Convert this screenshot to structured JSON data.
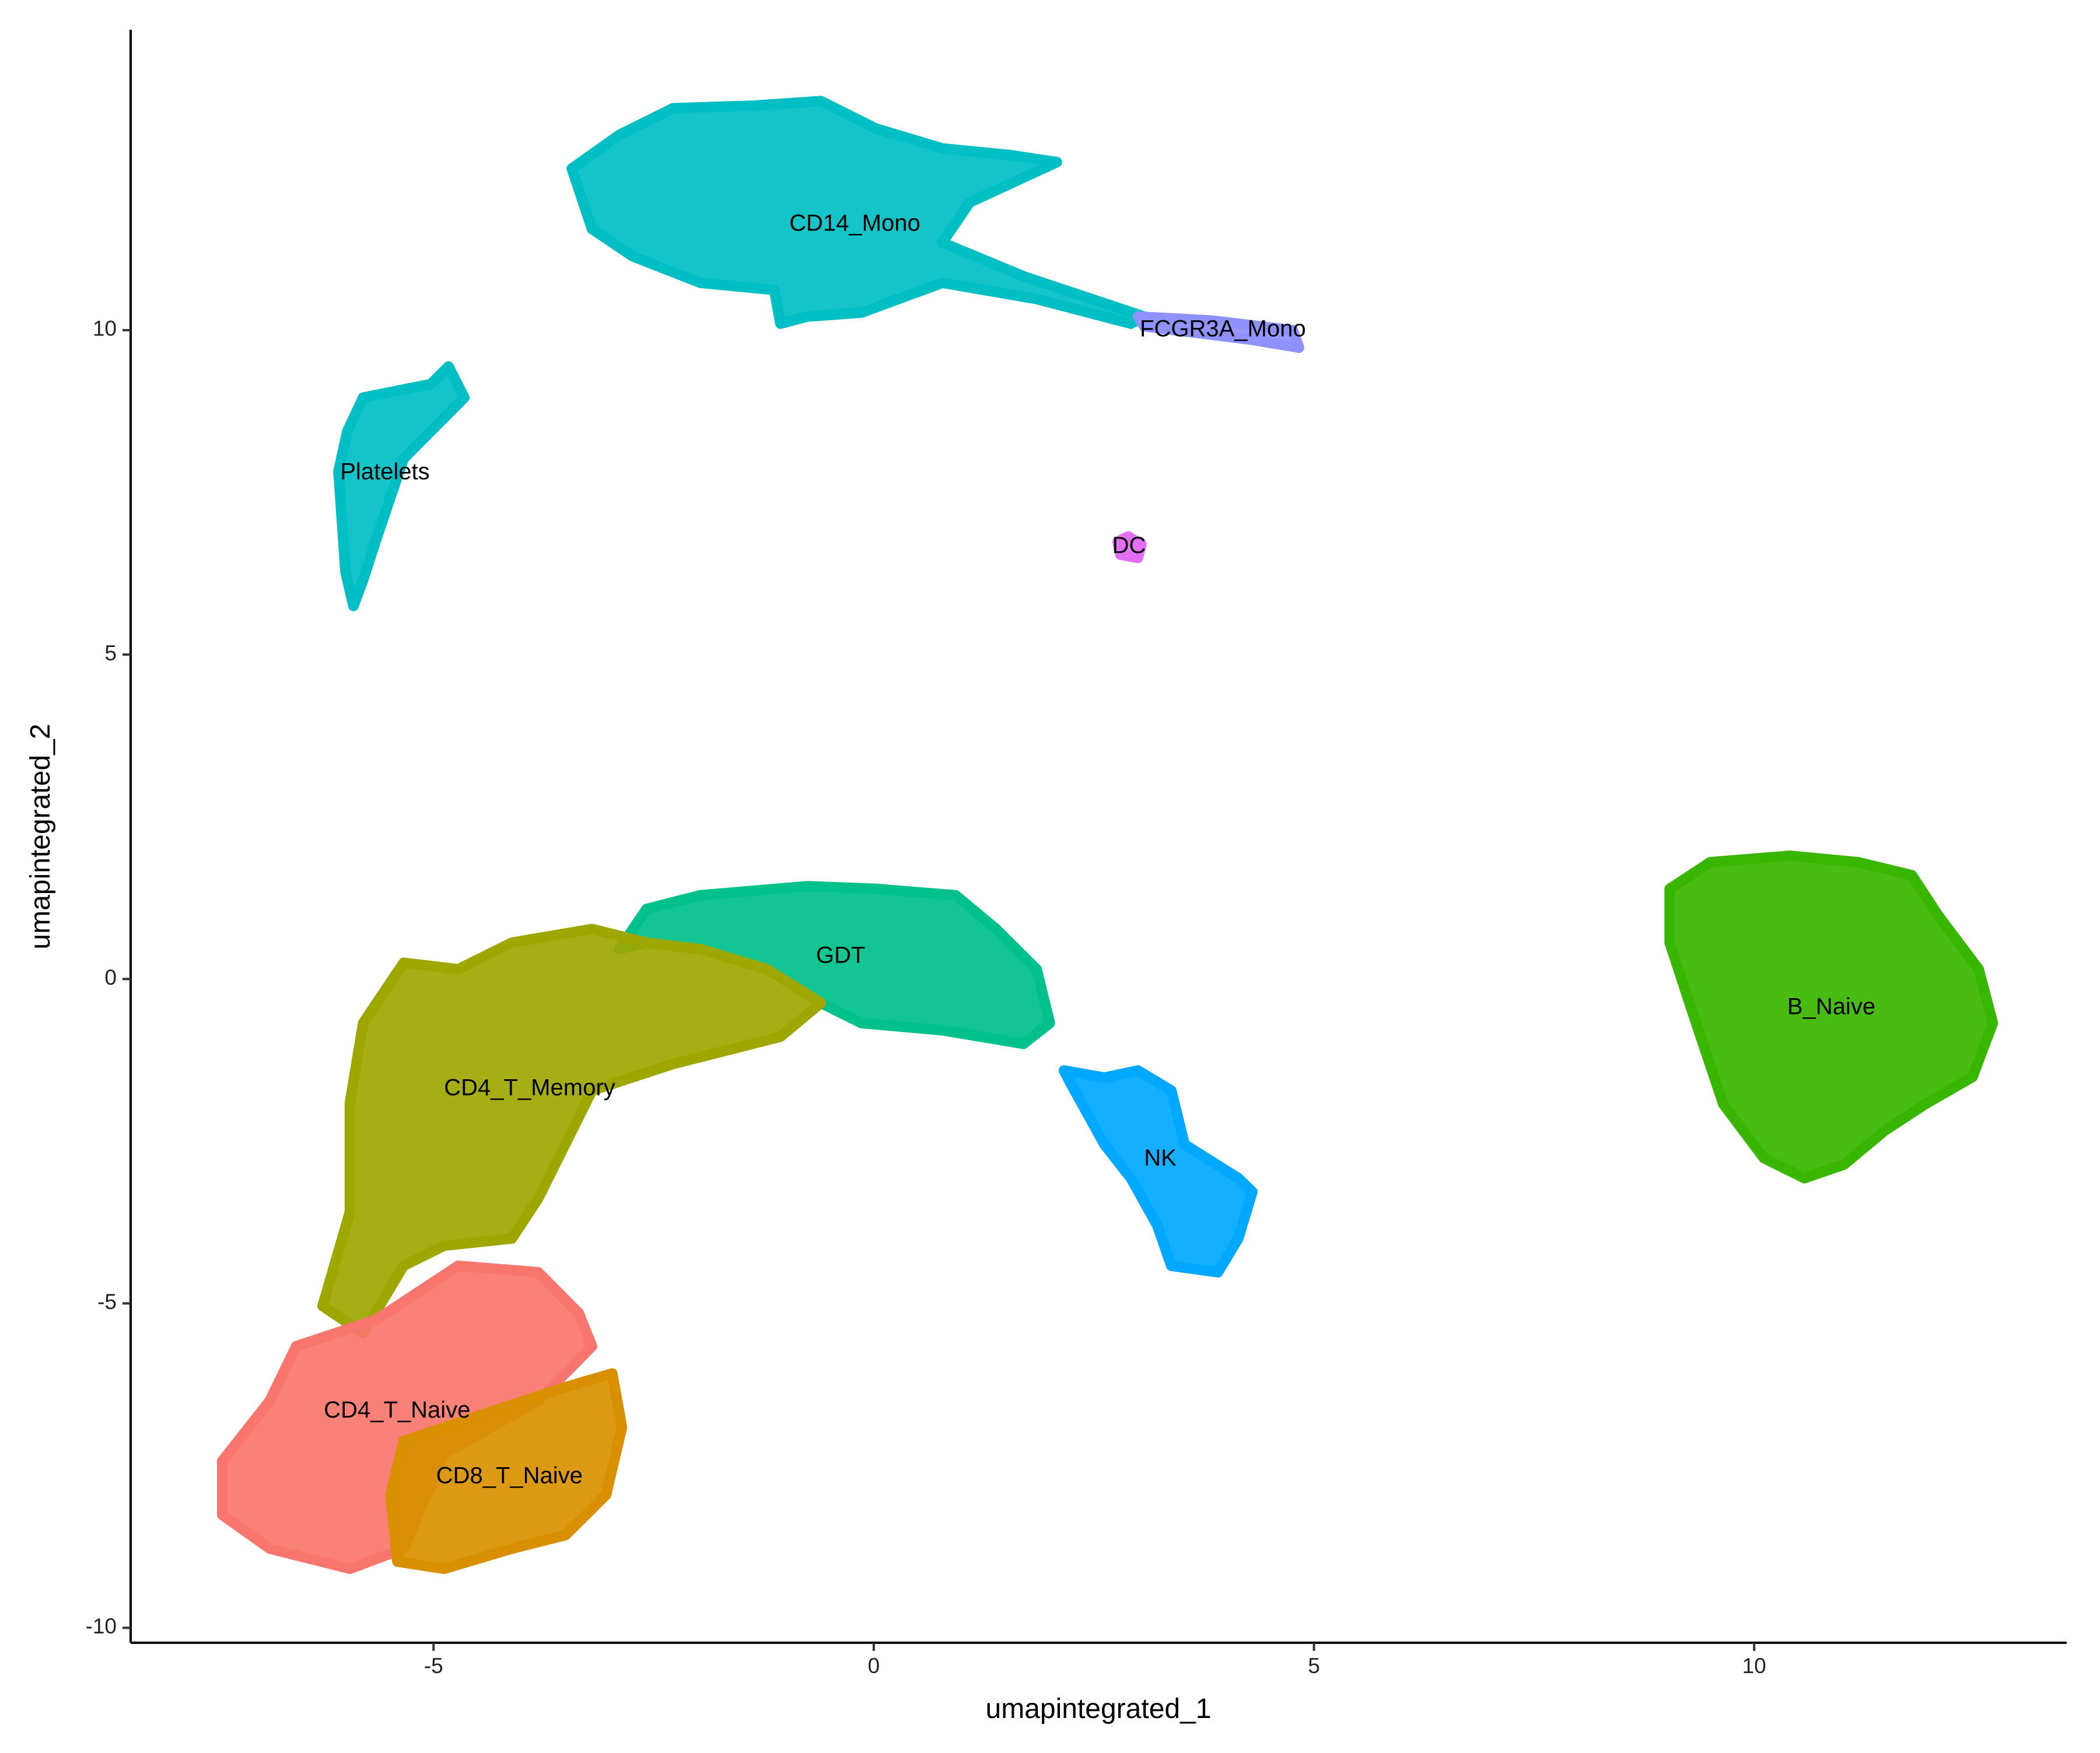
{
  "chart_data": {
    "type": "scatter",
    "xlabel": "umapintegrated_1",
    "ylabel": "umapintegrated_2",
    "xlim": [
      -8.44,
      13.55
    ],
    "ylim": [
      -10.23,
      14.63
    ],
    "xticks": [
      -5,
      0,
      5,
      10
    ],
    "yticks": [
      -10,
      -5,
      0,
      5,
      10
    ],
    "grid": false,
    "series": [
      {
        "name": "CD14_Mono",
        "color": "#00BFC4",
        "x": [
          -3.43,
          -2.89,
          -2.28,
          -1.36,
          -0.6,
          0.02,
          0.78,
          1.54,
          2.08,
          1.09,
          0.78,
          1.7,
          3.07,
          2.92,
          1.85,
          0.78,
          -0.14,
          -0.75,
          -1.06,
          -1.13,
          -1.97,
          -2.74,
          -3.2
        ],
        "y": [
          12.49,
          13.01,
          13.42,
          13.46,
          13.53,
          13.11,
          12.8,
          12.7,
          12.59,
          11.97,
          11.35,
          10.83,
          10.21,
          10.1,
          10.48,
          10.73,
          10.27,
          10.21,
          10.1,
          10.62,
          10.73,
          11.14,
          11.56
        ]
      },
      {
        "name": "FCGR3A_Mono",
        "color": "#8F91FF",
        "x": [
          3.0,
          3.83,
          4.76,
          4.83,
          4.3,
          3.07
        ],
        "y": [
          10.21,
          10.15,
          10.0,
          9.73,
          9.85,
          10.06
        ]
      },
      {
        "name": "Platelets",
        "color": "#00BFC4",
        "x": [
          -5.8,
          -5.03,
          -4.83,
          -4.65,
          -5.34,
          -5.65,
          -5.8,
          -5.91,
          -6.0,
          -6.08,
          -5.98
        ],
        "y": [
          8.96,
          9.17,
          9.44,
          8.96,
          8.02,
          6.78,
          6.15,
          5.75,
          6.27,
          7.82,
          8.44
        ]
      },
      {
        "name": "DC",
        "color": "#E36EF6",
        "x": [
          2.77,
          2.89,
          3.04,
          3.0,
          2.8
        ],
        "y": [
          6.74,
          6.82,
          6.7,
          6.49,
          6.54
        ]
      },
      {
        "name": "GDT",
        "color": "#00C08B",
        "x": [
          -2.58,
          -1.97,
          -0.75,
          0.02,
          0.93,
          1.39,
          1.85,
          2.0,
          1.7,
          0.78,
          -0.14,
          -0.6,
          -1.21,
          -1.97,
          -2.58,
          -2.89
        ],
        "y": [
          1.08,
          1.29,
          1.43,
          1.39,
          1.29,
          0.77,
          0.15,
          -0.68,
          -1.0,
          -0.79,
          -0.68,
          -0.37,
          0.15,
          0.46,
          0.56,
          0.46
        ]
      },
      {
        "name": "CD4_T_Memory",
        "color": "#9DA700",
        "x": [
          -5.8,
          -5.34,
          -4.72,
          -4.11,
          -3.2,
          -2.58,
          -1.97,
          -1.21,
          -0.6,
          -1.06,
          -2.28,
          -3.2,
          -3.81,
          -4.11,
          -4.88,
          -5.34,
          -5.8,
          -6.26,
          -5.95,
          -5.95
        ],
        "y": [
          -0.68,
          0.25,
          0.15,
          0.56,
          0.77,
          0.56,
          0.46,
          0.15,
          -0.37,
          -0.89,
          -1.31,
          -1.72,
          -3.38,
          -4.0,
          -4.11,
          -4.42,
          -5.46,
          -5.04,
          -3.59,
          -1.91
        ]
      },
      {
        "name": "NK",
        "color": "#00A9FF",
        "x": [
          2.16,
          2.62,
          3.0,
          3.38,
          3.53,
          4.14,
          4.3,
          4.14,
          3.91,
          3.38,
          3.22,
          2.92,
          2.62,
          2.24
        ],
        "y": [
          -1.41,
          -1.52,
          -1.41,
          -1.72,
          -2.55,
          -3.07,
          -3.28,
          -4.0,
          -4.52,
          -4.42,
          -3.8,
          -3.07,
          -2.55,
          -1.62
        ]
      },
      {
        "name": "B_Naive",
        "color": "#39B600",
        "x": [
          9.04,
          9.5,
          10.41,
          11.18,
          11.79,
          12.09,
          12.55,
          12.71,
          12.48,
          11.94,
          11.48,
          11.02,
          10.57,
          10.11,
          9.65,
          9.34,
          9.04
        ],
        "y": [
          1.39,
          1.8,
          1.9,
          1.8,
          1.6,
          0.98,
          0.15,
          -0.68,
          -1.51,
          -1.93,
          -2.34,
          -2.86,
          -3.07,
          -2.76,
          -1.93,
          -0.68,
          0.56
        ]
      },
      {
        "name": "CD4_T_Naive",
        "color": "#F8766D",
        "x": [
          -7.4,
          -6.86,
          -6.56,
          -5.65,
          -4.72,
          -3.81,
          -3.35,
          -3.2,
          -3.81,
          -4.88,
          -5.34,
          -5.95,
          -6.86,
          -7.4
        ],
        "y": [
          -7.43,
          -6.5,
          -5.66,
          -5.25,
          -4.42,
          -4.52,
          -5.15,
          -5.66,
          -6.5,
          -7.32,
          -8.78,
          -9.09,
          -8.78,
          -8.26
        ]
      },
      {
        "name": "CD8_T_Naive",
        "color": "#D89000",
        "x": [
          -5.34,
          -4.42,
          -3.5,
          -2.97,
          -2.86,
          -3.04,
          -3.5,
          -4.11,
          -4.88,
          -5.41,
          -5.49
        ],
        "y": [
          -7.12,
          -6.7,
          -6.29,
          -6.08,
          -6.91,
          -7.95,
          -8.57,
          -8.78,
          -9.09,
          -8.98,
          -7.95
        ]
      }
    ]
  }
}
